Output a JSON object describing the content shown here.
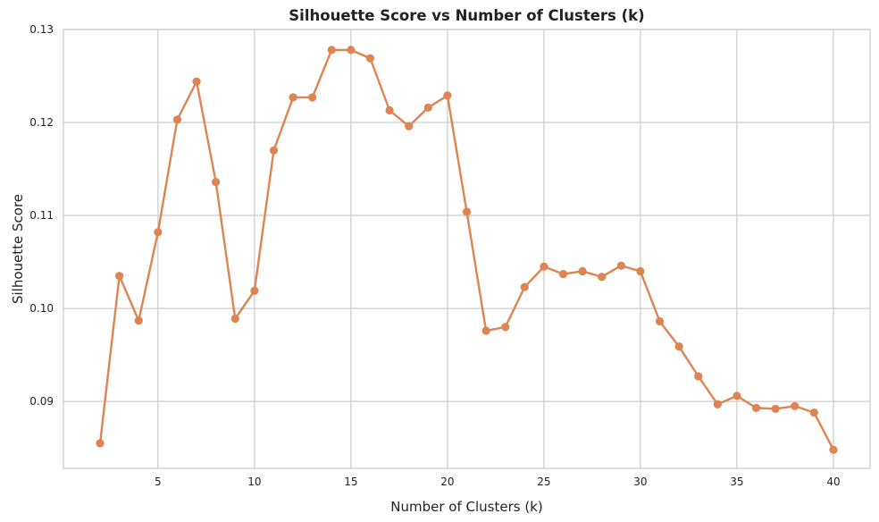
{
  "chart_data": {
    "type": "line",
    "title": "Silhouette Score vs Number of Clusters (k)",
    "xlabel": "Number of Clusters (k)",
    "ylabel": "Silhouette Score",
    "xlim": [
      0.1,
      41.9
    ],
    "ylim": [
      0.0828,
      0.13
    ],
    "xticks": [
      5,
      10,
      15,
      20,
      25,
      30,
      35,
      40
    ],
    "yticks": [
      0.09,
      0.1,
      0.11,
      0.12,
      0.13
    ],
    "ytick_labels": [
      "0.09",
      "0.10",
      "0.11",
      "0.12",
      "0.13"
    ],
    "grid": true,
    "legend": "none",
    "colors": {
      "line": "#dd8452",
      "grid": "#cccccc",
      "frame": "#cccccc"
    },
    "series": [
      {
        "x": [
          2,
          3,
          4,
          5,
          6,
          7,
          8,
          9,
          10,
          11,
          12,
          13,
          14,
          15,
          16,
          17,
          18,
          19,
          20,
          21,
          22,
          23,
          24,
          25,
          26,
          27,
          28,
          29,
          30,
          31,
          32,
          33,
          34,
          35,
          36,
          37,
          38,
          39,
          40
        ],
        "values": [
          0.0855,
          0.1035,
          0.0987,
          0.1082,
          0.1203,
          0.1244,
          0.1136,
          0.0989,
          0.1019,
          0.117,
          0.1227,
          0.1227,
          0.1278,
          0.1278,
          0.1269,
          0.1213,
          0.1196,
          0.1216,
          0.1229,
          0.1104,
          0.0976,
          0.098,
          0.1023,
          0.1045,
          0.1037,
          0.104,
          0.1034,
          0.1046,
          0.104,
          0.0986,
          0.0959,
          0.0927,
          0.0897,
          0.0906,
          0.0893,
          0.0892,
          0.0895,
          0.0888,
          0.0848
        ]
      }
    ]
  }
}
